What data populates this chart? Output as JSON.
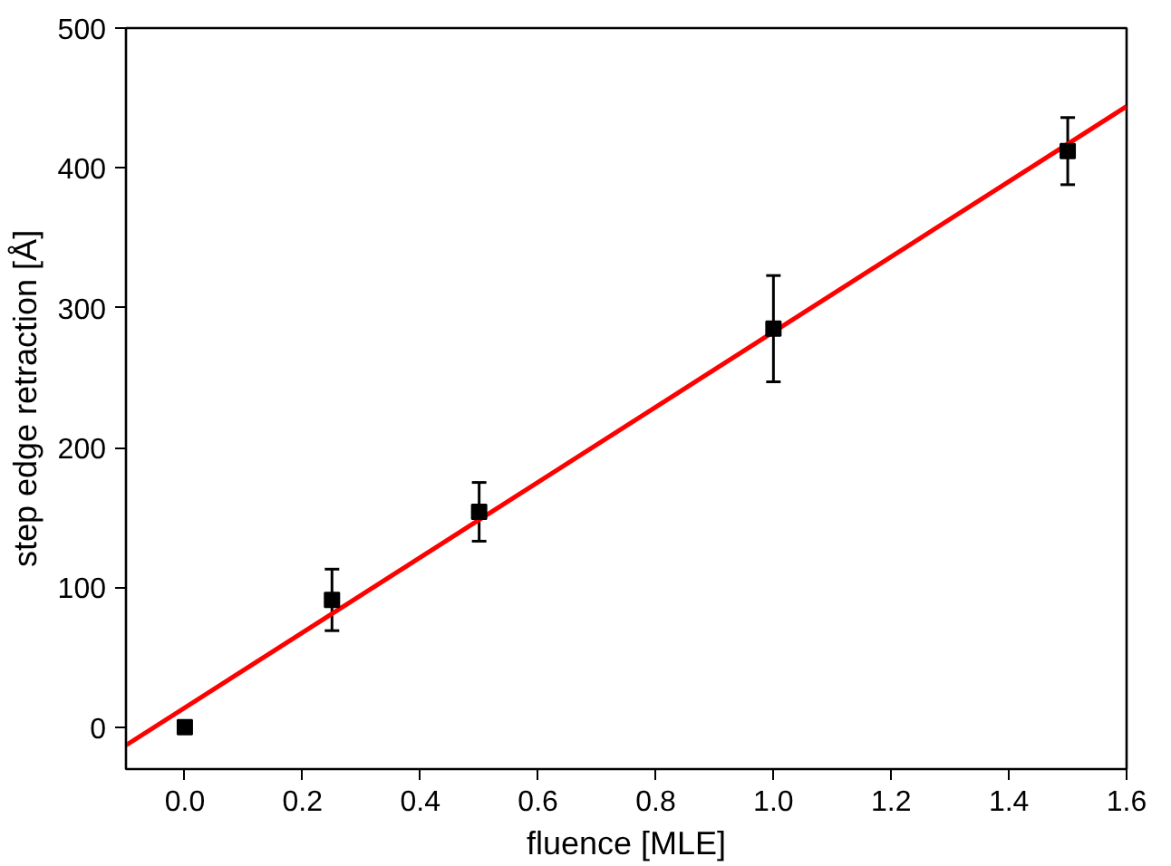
{
  "chart_data": {
    "type": "scatter",
    "xlabel": "fluence [MLE]",
    "ylabel": "step edge retraction [Å]",
    "xlim": [
      -0.1,
      1.6
    ],
    "ylim": [
      -30,
      500
    ],
    "xticks": [
      {
        "value": 0,
        "label": "0.0"
      },
      {
        "value": 0.2,
        "label": "0.2"
      },
      {
        "value": 0.4,
        "label": "0.4"
      },
      {
        "value": 0.6,
        "label": "0.6"
      },
      {
        "value": 0.8,
        "label": "0.8"
      },
      {
        "value": 1.0,
        "label": "1.0"
      },
      {
        "value": 1.2,
        "label": "1.2"
      },
      {
        "value": 1.4,
        "label": "1.4"
      },
      {
        "value": 1.6,
        "label": "1.6"
      }
    ],
    "yticks": [
      0,
      100,
      200,
      300,
      400,
      500
    ],
    "grid": false,
    "series": [
      {
        "marker": "square",
        "color": "#000000",
        "x": [
          0,
          0.25,
          0.5,
          1.0,
          1.5
        ],
        "values": [
          0,
          91,
          154,
          285,
          412
        ],
        "errors": [
          null,
          22,
          21,
          38,
          24
        ]
      },
      {
        "type": "line",
        "color": "#ff0000",
        "x": [
          -0.1,
          1.6
        ],
        "values": [
          -13,
          444
        ],
        "line_style": "solid"
      }
    ]
  }
}
